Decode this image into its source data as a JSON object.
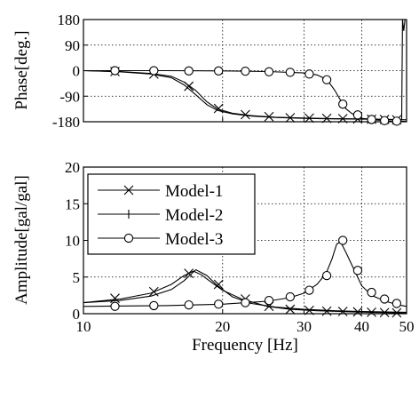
{
  "chart_data": [
    {
      "type": "line",
      "panel": "phase",
      "title": "",
      "xlabel": "",
      "ylabel": "Phase[deg.]",
      "xscale": "log",
      "xlim": [
        10,
        50
      ],
      "ylim": [
        -180,
        180
      ],
      "yticks": [
        180,
        90,
        0,
        -90,
        -180
      ],
      "ytick_labels": [
        "180",
        "90",
        "0",
        "-90",
        "-180"
      ],
      "grid": true,
      "series": [
        {
          "name": "Model-1",
          "marker": "x",
          "x": [
            10,
            12,
            14,
            15.5,
            16.5,
            17.5,
            18.5,
            19.5,
            21,
            23,
            26,
            30,
            35,
            40,
            46,
            50
          ],
          "y": [
            0,
            -3,
            -10,
            -20,
            -40,
            -70,
            -110,
            -135,
            -150,
            -158,
            -164,
            -167,
            -169,
            -170,
            -172,
            -173
          ],
          "marker_x": [
            11.7,
            14.2,
            16.9,
            19.6,
            22.4,
            25.2,
            28,
            30.8,
            33.6,
            36.4,
            39.2,
            42,
            44.8,
            47.6
          ],
          "marker_y": [
            -3,
            -12,
            -55,
            -133,
            -155,
            -162,
            -166,
            -167,
            -168,
            -169,
            -170,
            -171,
            -172,
            -173
          ]
        },
        {
          "name": "Model-2",
          "marker": "plus",
          "x": [
            10,
            12,
            14,
            15.5,
            16.5,
            17.5,
            18.5,
            19.5,
            21,
            23,
            26,
            30,
            35,
            40,
            46,
            48.8,
            49,
            49.3,
            49.6,
            50
          ],
          "y": [
            0,
            -4,
            -12,
            -25,
            -50,
            -85,
            -120,
            -140,
            -152,
            -160,
            -165,
            -168,
            -170,
            -171,
            -172,
            -173,
            180,
            140,
            180,
            180
          ],
          "marker_x": [],
          "marker_y": []
        },
        {
          "name": "Model-3",
          "marker": "circle",
          "x": [
            10,
            15,
            20,
            25,
            30,
            32,
            33,
            34,
            35,
            36,
            37,
            38,
            39,
            40,
            43,
            46,
            50
          ],
          "y": [
            0,
            0,
            -1,
            -3,
            -8,
            -15,
            -25,
            -42,
            -70,
            -105,
            -135,
            -150,
            -160,
            -168,
            -174,
            -177,
            -179
          ],
          "marker_x": [
            11.7,
            14.2,
            16.9,
            19.6,
            22.4,
            25.2,
            28,
            30.8,
            33.6,
            36.4,
            39.2,
            42,
            44.8,
            47.6
          ],
          "marker_y": [
            0,
            0,
            -1,
            -1,
            -2,
            -4,
            -6,
            -12,
            -32,
            -118,
            -156,
            -172,
            -176,
            -178
          ]
        }
      ]
    },
    {
      "type": "line",
      "panel": "amplitude",
      "title": "",
      "xlabel": "Frequency [Hz]",
      "ylabel": "Amplitude[gal/gal]",
      "xscale": "log",
      "xlim": [
        10,
        50
      ],
      "ylim": [
        0,
        20
      ],
      "xticks": [
        10,
        20,
        30,
        40,
        50
      ],
      "xtick_labels": [
        "10",
        "20",
        "30",
        "40",
        "50"
      ],
      "yticks": [
        0,
        5,
        10,
        15,
        20
      ],
      "ytick_labels": [
        "0",
        "5",
        "10",
        "15",
        "20"
      ],
      "grid": true,
      "legend": "top-left",
      "series": [
        {
          "name": "Model-1",
          "marker": "x",
          "x": [
            10,
            12,
            14,
            15.5,
            16.5,
            17.3,
            18,
            19,
            20,
            22,
            25,
            28,
            32,
            38,
            45,
            50
          ],
          "y": [
            1.5,
            2,
            2.8,
            4,
            5.2,
            5.8,
            5.3,
            4.2,
            3.2,
            2,
            1,
            0.6,
            0.4,
            0.25,
            0.15,
            0.1
          ],
          "marker_x": [
            11.7,
            14.2,
            16.9,
            19.6,
            22.4,
            25.2,
            28,
            30.8,
            33.6,
            36.4,
            39.2,
            42,
            44.8,
            47.6
          ],
          "marker_y": [
            2.1,
            3,
            5.5,
            4,
            2,
            1,
            0.6,
            0.45,
            0.35,
            0.3,
            0.25,
            0.2,
            0.15,
            0.12
          ]
        },
        {
          "name": "Model-2",
          "marker": "plus",
          "x": [
            10,
            12,
            14,
            15.5,
            16.5,
            17.5,
            18.5,
            19.5,
            21,
            23,
            26,
            30,
            35,
            40,
            50
          ],
          "y": [
            1.5,
            1.8,
            2.4,
            3.3,
            4.5,
            6,
            5.2,
            3.8,
            2.3,
            1.4,
            0.9,
            0.6,
            0.4,
            0.3,
            0.2
          ],
          "marker_x": [],
          "marker_y": []
        },
        {
          "name": "Model-3",
          "marker": "circle",
          "x": [
            10,
            15,
            20,
            25,
            28,
            30,
            32,
            33.5,
            34.5,
            35.3,
            36,
            37,
            38.5,
            40,
            42,
            45,
            48,
            50
          ],
          "y": [
            1,
            1.1,
            1.3,
            1.7,
            2.2,
            2.8,
            4,
            5.5,
            7.5,
            9.5,
            9.8,
            8.3,
            6,
            3.8,
            2.5,
            1.7,
            1.2,
            1
          ],
          "marker_x": [
            11.7,
            14.2,
            16.9,
            19.6,
            22.4,
            25.2,
            28,
            30.8,
            33.6,
            36.4,
            39.2,
            42,
            44.8,
            47.6
          ],
          "marker_y": [
            1,
            1.1,
            1.2,
            1.3,
            1.5,
            1.8,
            2.3,
            3.2,
            5.2,
            10,
            5.9,
            2.9,
            2,
            1.4
          ]
        }
      ]
    }
  ]
}
